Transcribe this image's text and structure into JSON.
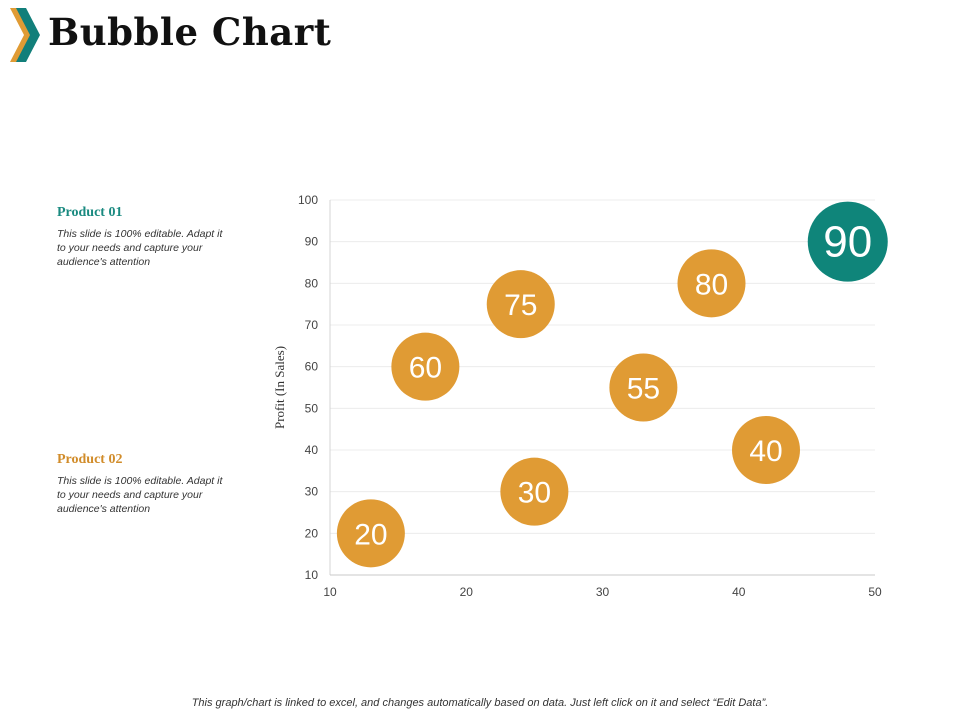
{
  "page": {
    "title": "Bubble Chart",
    "footer": "This graph/chart is linked to excel, and changes automatically based on data. Just left click on it and select “Edit Data”."
  },
  "products": [
    {
      "name": "Product 01",
      "description": "This slide is 100% editable. Adapt it to your needs and capture your audience's attention",
      "color": "#1a8a80"
    },
    {
      "name": "Product 02",
      "description": "This slide is 100% editable. Adapt it to your needs and capture your audience's attention",
      "color": "#d18c2a"
    }
  ],
  "colors": {
    "orange": "#e09b34",
    "teal": "#0f857a",
    "logo_orange": "#e09b34",
    "logo_teal": "#127f7a"
  },
  "chart_data": {
    "type": "scatter",
    "title": "",
    "xlabel": "",
    "ylabel": "Profit  (In Sales)",
    "xlim": [
      10,
      50
    ],
    "ylim": [
      10,
      100
    ],
    "xticks": [
      10,
      20,
      30,
      40,
      50
    ],
    "yticks": [
      10,
      20,
      30,
      40,
      50,
      60,
      70,
      80,
      90,
      100
    ],
    "grid": true,
    "legend": "none",
    "points": [
      {
        "x": 13,
        "y": 20,
        "label": "20",
        "series": "orange"
      },
      {
        "x": 17,
        "y": 60,
        "label": "60",
        "series": "orange"
      },
      {
        "x": 24,
        "y": 75,
        "label": "75",
        "series": "orange"
      },
      {
        "x": 25,
        "y": 30,
        "label": "30",
        "series": "orange"
      },
      {
        "x": 33,
        "y": 55,
        "label": "55",
        "series": "orange"
      },
      {
        "x": 38,
        "y": 80,
        "label": "80",
        "series": "orange"
      },
      {
        "x": 42,
        "y": 40,
        "label": "40",
        "series": "orange"
      },
      {
        "x": 48,
        "y": 90,
        "label": "90",
        "series": "teal"
      }
    ]
  }
}
